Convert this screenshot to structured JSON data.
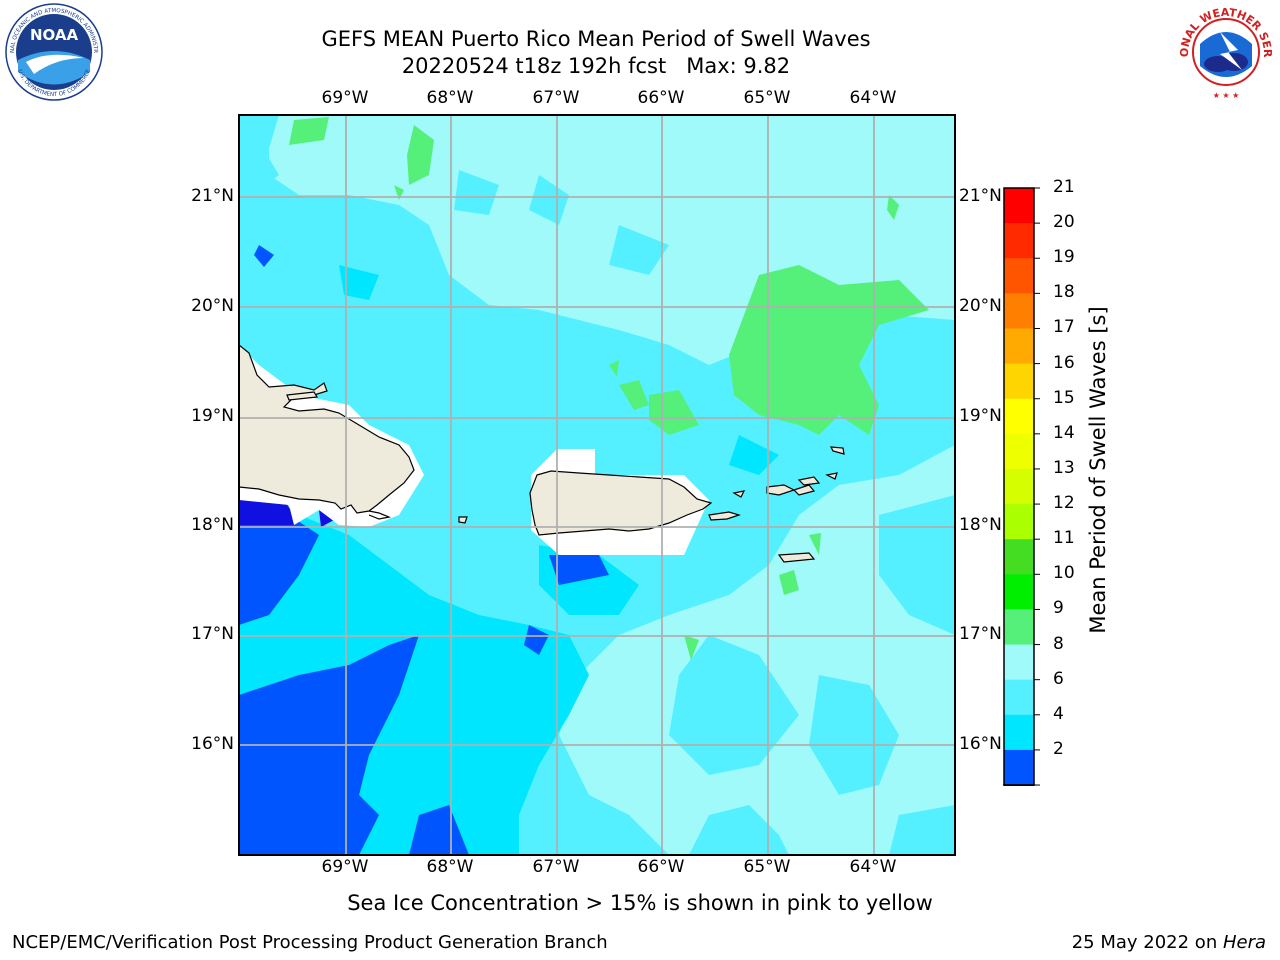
{
  "title": {
    "line1": "GEFS MEAN Puerto Rico Mean Period of Swell Waves",
    "line2": "20220524 t18z 192h fcst   Max: 9.82"
  },
  "footer": {
    "note": "Sea Ice Concentration > 15% is shown in pink to yellow",
    "credit_left": "NCEP/EMC/Verification Post Processing Product Generation Branch",
    "credit_date": "25 May 2022 on ",
    "credit_host": "Hera"
  },
  "logos": {
    "noaa_text": "NOAA",
    "noaa_ring_top": "NATIONAL OCEANIC AND ATMOSPHERIC ADMINISTRATION",
    "noaa_ring_bottom": "U.S. DEPARTMENT OF COMMERCE",
    "nws_ring": "NATIONAL WEATHER SERVICE"
  },
  "map": {
    "lon_labels": [
      "69°W",
      "68°W",
      "67°W",
      "66°W",
      "65°W",
      "64°W"
    ],
    "lat_labels": [
      "21°N",
      "20°N",
      "19°N",
      "18°N",
      "17°N",
      "16°N"
    ],
    "ocean_colors": {
      "range_2_4": "#0055ff",
      "range_4_6": "#00e6ff",
      "range_6_8": "#55f0ff",
      "range_8_9": "#a0fafa",
      "range_9_10": "#55f07a",
      "below_2": "#1010e0",
      "land": "#efebdc",
      "masked": "#ffffff",
      "grid": "#b0b0b0"
    }
  },
  "colorbar": {
    "title": "Mean Period of Swell Waves [s]",
    "labels": [
      "21",
      "20",
      "19",
      "18",
      "17",
      "16",
      "15",
      "14",
      "13",
      "12",
      "11",
      "10",
      "9",
      "8",
      "6",
      "4",
      "2"
    ],
    "colors": [
      "#ff0000",
      "#ff2a00",
      "#ff5500",
      "#ff8000",
      "#ffaa00",
      "#ffd500",
      "#ffff00",
      "#eeff00",
      "#d5ff00",
      "#aaff00",
      "#44dd22",
      "#00ee00",
      "#55f07a",
      "#a0fafa",
      "#55f0ff",
      "#00e6ff",
      "#0055ff"
    ],
    "under_color": "#1010e0"
  }
}
